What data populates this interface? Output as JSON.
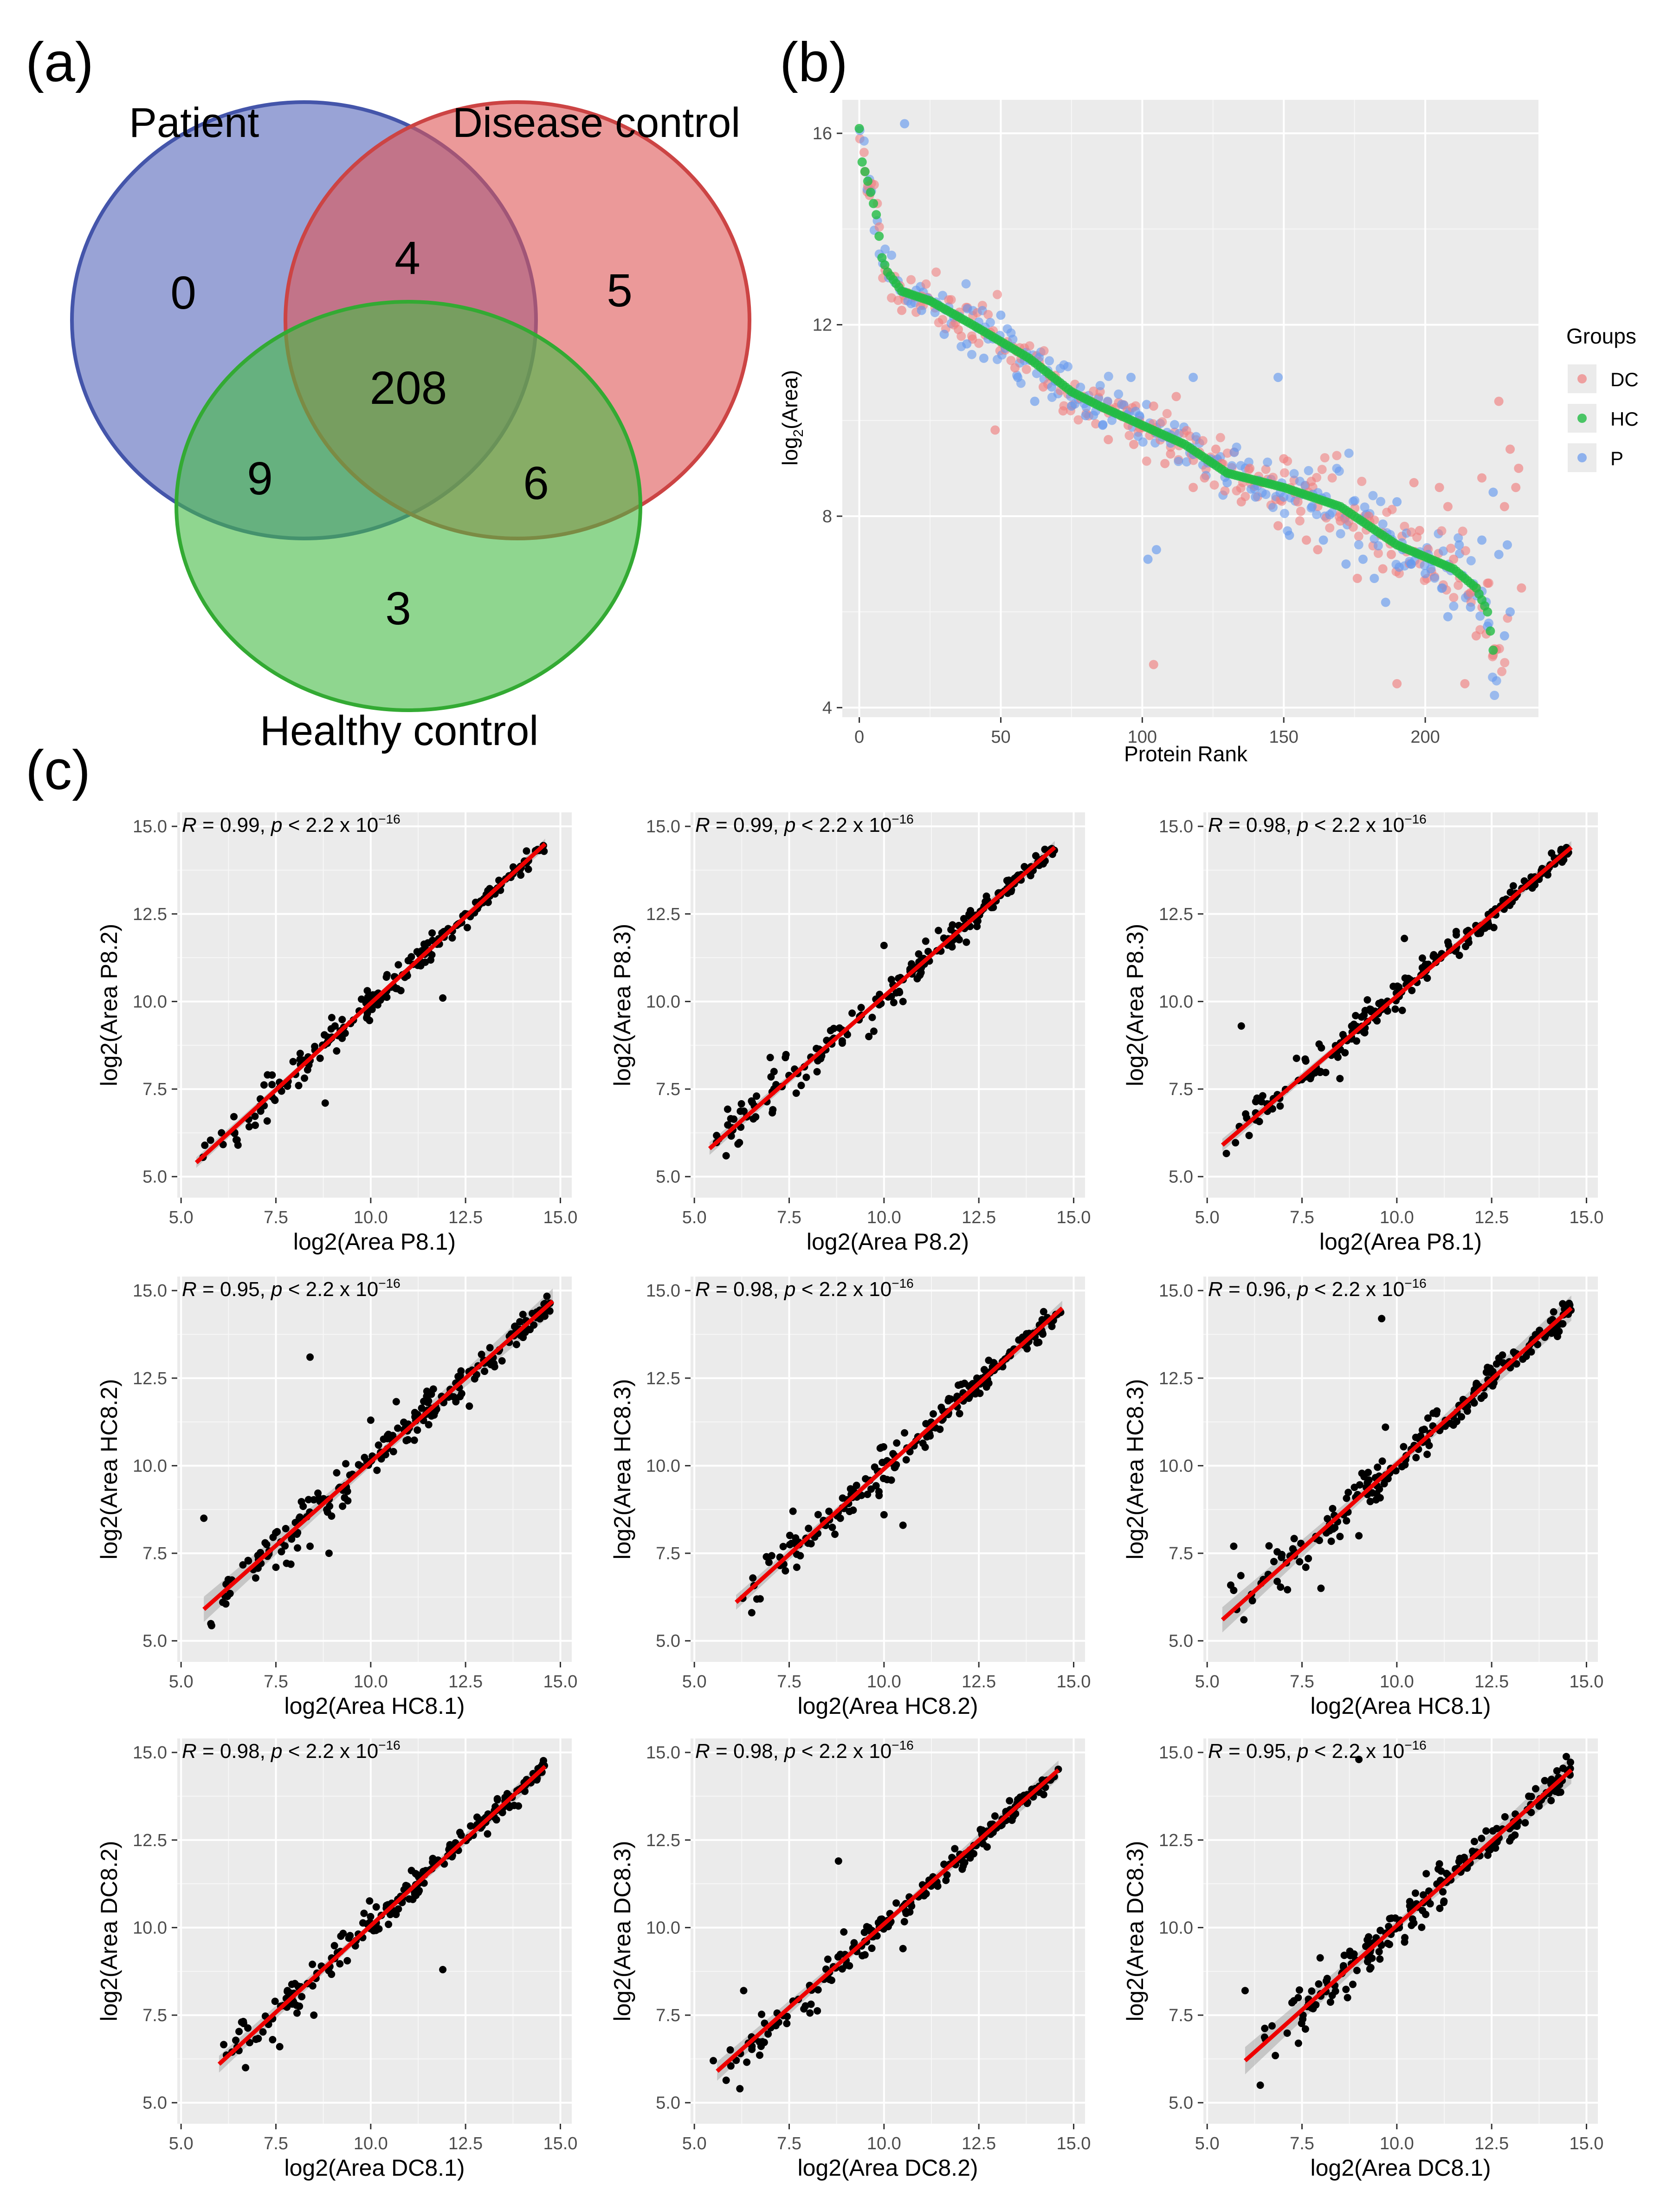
{
  "panel_labels": {
    "a": "(a)",
    "b": "(b)",
    "c": "(c)"
  },
  "colors": {
    "patient": "#5566bb",
    "disease": "#dd5555",
    "healthy": "#44bb44",
    "dc": "#f08080",
    "hc": "#22bb44",
    "p": "#6699ee",
    "panel_bg": "#ebebeb",
    "grid": "#ffffff",
    "fit": "#ee0000",
    "point": "#000000"
  },
  "venn": {
    "sets": [
      "Patient",
      "Disease control",
      "Healthy control"
    ],
    "regions": {
      "patient_only": "0",
      "patient_disease": "4",
      "disease_only": "5",
      "all_three": "208",
      "patient_healthy": "9",
      "disease_healthy": "6",
      "healthy_only": "3"
    }
  },
  "chart_data": [
    {
      "id": "b",
      "type": "scatter",
      "title": "",
      "xlabel": "Protein Rank",
      "ylabel_main": "log",
      "ylabel_sub": "2",
      "ylabel_tail": "(Area)",
      "xlim": [
        -6,
        240
      ],
      "ylim": [
        3.8,
        16.7
      ],
      "xticks": [
        0,
        50,
        100,
        150,
        200
      ],
      "yticks": [
        4,
        8,
        12,
        16
      ],
      "legend": {
        "title": "Groups",
        "position": "right",
        "entries": [
          {
            "label": "DC",
            "color": "#f08080"
          },
          {
            "label": "HC",
            "color": "#22bb44"
          },
          {
            "label": "P",
            "color": "#6699ee"
          }
        ]
      },
      "series": [
        {
          "name": "HC",
          "curve": [
            [
              0,
              16.1
            ],
            [
              1,
              15.4
            ],
            [
              3,
              15.0
            ],
            [
              6,
              14.3
            ],
            [
              8,
              13.4
            ],
            [
              10,
              13.1
            ],
            [
              15,
              12.7
            ],
            [
              25,
              12.5
            ],
            [
              40,
              12.0
            ],
            [
              60,
              11.3
            ],
            [
              75,
              10.6
            ],
            [
              85,
              10.3
            ],
            [
              100,
              9.9
            ],
            [
              115,
              9.5
            ],
            [
              130,
              8.9
            ],
            [
              150,
              8.6
            ],
            [
              170,
              8.2
            ],
            [
              190,
              7.4
            ],
            [
              210,
              6.9
            ],
            [
              218,
              6.5
            ],
            [
              222,
              6.0
            ],
            [
              224,
              5.2
            ]
          ]
        },
        {
          "name": "DC",
          "points": [
            [
              2,
              15.2
            ],
            [
              3,
              14.9
            ],
            [
              15,
              12.3
            ],
            [
              22,
              12.6
            ],
            [
              35,
              11.9
            ],
            [
              40,
              11.7
            ],
            [
              48,
              9.8
            ],
            [
              55,
              11.1
            ],
            [
              65,
              10.7
            ],
            [
              72,
              10.2
            ],
            [
              82,
              10.4
            ],
            [
              88,
              9.6
            ],
            [
              95,
              9.9
            ],
            [
              97,
              9.5
            ],
            [
              99,
              10.0
            ],
            [
              104,
              10.3
            ],
            [
              104,
              4.9
            ],
            [
              108,
              9.1
            ],
            [
              110,
              9.3
            ],
            [
              112,
              10.5
            ],
            [
              118,
              8.6
            ],
            [
              122,
              8.8
            ],
            [
              126,
              9.4
            ],
            [
              128,
              9.1
            ],
            [
              135,
              8.3
            ],
            [
              138,
              9.0
            ],
            [
              148,
              7.8
            ],
            [
              150,
              9.2
            ],
            [
              155,
              8.3
            ],
            [
              158,
              7.5
            ],
            [
              162,
              7.3
            ],
            [
              170,
              7.9
            ],
            [
              176,
              6.7
            ],
            [
              180,
              8.0
            ],
            [
              185,
              6.9
            ],
            [
              188,
              7.2
            ],
            [
              190,
              4.5
            ],
            [
              196,
              8.7
            ],
            [
              198,
              7.7
            ],
            [
              205,
              8.6
            ],
            [
              208,
              8.2
            ],
            [
              210,
              7.1
            ],
            [
              214,
              4.5
            ],
            [
              216,
              6.4
            ],
            [
              218,
              5.5
            ],
            [
              220,
              8.8
            ],
            [
              222,
              6.6
            ],
            [
              224,
              5.1
            ],
            [
              226,
              10.4
            ],
            [
              228,
              8.2
            ],
            [
              230,
              9.4
            ],
            [
              232,
              8.6
            ],
            [
              233,
              9.0
            ],
            [
              234,
              6.5
            ]
          ]
        },
        {
          "name": "P",
          "points": [
            [
              16,
              16.2
            ],
            [
              22,
              12.3
            ],
            [
              30,
              11.8
            ],
            [
              38,
              11.6
            ],
            [
              44,
              11.3
            ],
            [
              50,
              12.2
            ],
            [
              56,
              10.9
            ],
            [
              62,
              10.4
            ],
            [
              68,
              10.7
            ],
            [
              75,
              10.3
            ],
            [
              80,
              10.1
            ],
            [
              86,
              9.9
            ],
            [
              96,
              10.9
            ],
            [
              99,
              10.1
            ],
            [
              102,
              7.1
            ],
            [
              105,
              7.3
            ],
            [
              110,
              9.7
            ],
            [
              118,
              10.9
            ],
            [
              125,
              9.1
            ],
            [
              130,
              8.7
            ],
            [
              140,
              8.4
            ],
            [
              148,
              10.9
            ],
            [
              150,
              8.4
            ],
            [
              152,
              7.6
            ],
            [
              160,
              8.2
            ],
            [
              164,
              7.5
            ],
            [
              172,
              7.0
            ],
            [
              178,
              7.1
            ],
            [
              182,
              6.7
            ],
            [
              186,
              6.2
            ],
            [
              190,
              8.3
            ],
            [
              192,
              7.3
            ],
            [
              195,
              7.0
            ],
            [
              200,
              6.8
            ],
            [
              202,
              6.9
            ],
            [
              206,
              6.5
            ],
            [
              208,
              5.9
            ],
            [
              212,
              7.4
            ],
            [
              216,
              6.1
            ],
            [
              220,
              7.5
            ],
            [
              222,
              5.7
            ],
            [
              224,
              8.5
            ],
            [
              226,
              7.2
            ],
            [
              228,
              5.5
            ],
            [
              229,
              7.4
            ],
            [
              230,
              6.0
            ]
          ]
        }
      ]
    },
    {
      "id": "c-grid",
      "type": "scatter",
      "annotation": {
        "prefix": " = ",
        "mid": ", ",
        "tail": " < 2.2 x 10",
        "exp": "−16",
        "r_symbol": "R",
        "p_symbol": "p"
      },
      "xlim": [
        4.9,
        15.3
      ],
      "ylim": [
        4.4,
        15.4
      ],
      "ticks": [
        5.0,
        7.5,
        10.0,
        12.5,
        15.0
      ],
      "tick_labels": [
        "5.0",
        "7.5",
        "10.0",
        "12.5",
        "15.0"
      ],
      "panels": [
        {
          "r": "0.99",
          "xlabel": "log2(Area P8.1)",
          "ylabel": "log2(Area P8.2)",
          "fit": [
            [
              5.4,
              5.4
            ],
            [
              14.6,
              14.5
            ]
          ],
          "band": 0.05,
          "outliers": [
            [
              11.9,
              10.1
            ],
            [
              8.8,
              7.1
            ],
            [
              7.4,
              7.9
            ],
            [
              6.5,
              5.9
            ],
            [
              8.1,
              7.6
            ]
          ]
        },
        {
          "r": "0.99",
          "xlabel": "log2(Area P8.2)",
          "ylabel": "log2(Area P8.3)",
          "fit": [
            [
              5.4,
              5.8
            ],
            [
              14.5,
              14.4
            ]
          ],
          "band": 0.06,
          "outliers": [
            [
              7.0,
              8.4
            ],
            [
              7.1,
              8.0
            ],
            [
              7.4,
              8.4
            ],
            [
              10.0,
              11.6
            ],
            [
              9.6,
              9.0
            ],
            [
              10.5,
              10.0
            ]
          ]
        },
        {
          "r": "0.98",
          "xlabel": "log2(Area P8.1)",
          "ylabel": "log2(Area P8.3)",
          "fit": [
            [
              5.4,
              5.9
            ],
            [
              14.6,
              14.4
            ]
          ],
          "band": 0.06,
          "outliers": [
            [
              5.9,
              9.3
            ],
            [
              10.2,
              11.8
            ],
            [
              8.5,
              7.8
            ],
            [
              7.6,
              8.3
            ]
          ]
        },
        {
          "r": "0.95",
          "xlabel": "log2(Area HC8.1)",
          "ylabel": "log2(Area HC8.2)",
          "fit": [
            [
              5.6,
              5.9
            ],
            [
              14.8,
              14.7
            ]
          ],
          "band": 0.12,
          "outliers": [
            [
              5.6,
              8.5
            ],
            [
              8.4,
              13.1
            ],
            [
              6.1,
              6.1
            ],
            [
              8.9,
              7.5
            ],
            [
              12.6,
              11.7
            ],
            [
              10.0,
              11.3
            ],
            [
              7.5,
              7.1
            ],
            [
              8.4,
              7.7
            ]
          ]
        },
        {
          "r": "0.98",
          "xlabel": "log2(Area HC8.2)",
          "ylabel": "log2(Area HC8.3)",
          "fit": [
            [
              6.1,
              6.1
            ],
            [
              14.7,
              14.5
            ]
          ],
          "band": 0.07,
          "outliers": [
            [
              7.6,
              8.7
            ],
            [
              10.5,
              8.3
            ],
            [
              10.0,
              8.6
            ],
            [
              6.9,
              7.4
            ],
            [
              7.4,
              7.0
            ],
            [
              7.7,
              7.1
            ],
            [
              9.9,
              10.5
            ]
          ]
        },
        {
          "r": "0.96",
          "xlabel": "log2(Area HC8.1)",
          "ylabel": "log2(Area HC8.3)",
          "fit": [
            [
              5.4,
              5.6
            ],
            [
              14.6,
              14.5
            ]
          ],
          "band": 0.12,
          "outliers": [
            [
              9.6,
              14.2
            ],
            [
              5.7,
              7.7
            ],
            [
              8.0,
              6.5
            ],
            [
              7.6,
              7.1
            ],
            [
              9.7,
              11.1
            ],
            [
              9.0,
              8.0
            ]
          ]
        },
        {
          "r": "0.98",
          "xlabel": "log2(Area DC8.1)",
          "ylabel": "log2(Area DC8.2)",
          "fit": [
            [
              6.0,
              6.1
            ],
            [
              14.6,
              14.6
            ]
          ],
          "band": 0.08,
          "outliers": [
            [
              11.9,
              8.8
            ],
            [
              7.6,
              6.6
            ],
            [
              8.5,
              7.5
            ],
            [
              6.7,
              6.0
            ],
            [
              8.0,
              8.4
            ],
            [
              8.7,
              8.9
            ]
          ]
        },
        {
          "r": "0.98",
          "xlabel": "log2(Area DC8.2)",
          "ylabel": "log2(Area DC8.3)",
          "fit": [
            [
              5.6,
              5.9
            ],
            [
              14.6,
              14.5
            ]
          ],
          "band": 0.09,
          "outliers": [
            [
              8.8,
              11.9
            ],
            [
              6.2,
              5.4
            ],
            [
              6.3,
              8.2
            ],
            [
              10.5,
              9.4
            ],
            [
              5.5,
              6.2
            ],
            [
              7.6,
              7.9
            ]
          ]
        },
        {
          "r": "0.95",
          "xlabel": "log2(Area DC8.1)",
          "ylabel": "log2(Area DC8.3)",
          "fit": [
            [
              6.0,
              6.2
            ],
            [
              14.6,
              14.5
            ]
          ],
          "band": 0.13,
          "outliers": [
            [
              9.0,
              14.8
            ],
            [
              6.0,
              8.2
            ],
            [
              6.4,
              5.5
            ],
            [
              7.4,
              8.0
            ],
            [
              8.7,
              8.0
            ],
            [
              9.5,
              9.6
            ]
          ]
        }
      ]
    }
  ]
}
